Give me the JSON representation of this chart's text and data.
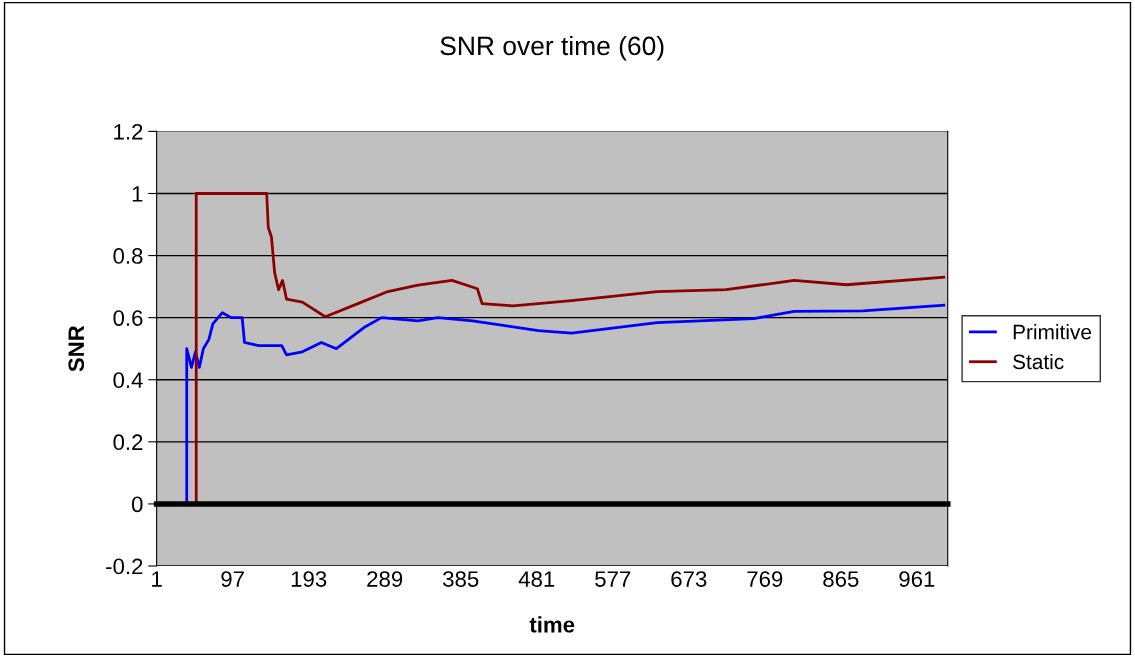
{
  "chart_data": {
    "type": "line",
    "title": "SNR over time (60)",
    "xlabel": "time",
    "ylabel": "SNR",
    "xlim": [
      1,
      1000
    ],
    "xticks": [
      1,
      97,
      193,
      289,
      385,
      481,
      577,
      673,
      769,
      865,
      961
    ],
    "ylim": [
      -0.2,
      1.2
    ],
    "yticks": [
      -0.2,
      0,
      0.2,
      0.4,
      0.6,
      0.8,
      1,
      1.2
    ],
    "grid": "y",
    "legend": "right",
    "line_style": "solid",
    "series": [
      {
        "name": "Primitive",
        "color": "#0000ff",
        "x": [
          1,
          39,
          39,
          45,
          50,
          55,
          60,
          67,
          72,
          84,
          95,
          109,
          112,
          130,
          159,
          165,
          185,
          209,
          228,
          264,
          285,
          331,
          356,
          400,
          483,
          525,
          633,
          755,
          806,
          893,
          995
        ],
        "values": [
          0,
          0,
          0.5,
          0.44,
          0.49,
          0.44,
          0.5,
          0.53,
          0.58,
          0.616,
          0.6,
          0.6,
          0.52,
          0.51,
          0.51,
          0.48,
          0.49,
          0.52,
          0.5,
          0.57,
          0.6,
          0.59,
          0.6,
          0.59,
          0.558,
          0.55,
          0.584,
          0.597,
          0.62,
          0.622,
          0.64
        ]
      },
      {
        "name": "Static",
        "color": "#8b0000",
        "x": [
          1,
          51,
          51,
          140,
          142,
          146,
          150,
          155,
          160,
          165,
          185,
          214,
          252,
          293,
          331,
          374,
          406,
          412,
          451,
          525,
          633,
          720,
          806,
          872,
          995
        ],
        "values": [
          0,
          0,
          1,
          1,
          0.89,
          0.86,
          0.745,
          0.69,
          0.72,
          0.66,
          0.65,
          0.603,
          0.642,
          0.684,
          0.705,
          0.72,
          0.693,
          0.645,
          0.638,
          0.655,
          0.684,
          0.69,
          0.72,
          0.706,
          0.73
        ]
      }
    ]
  }
}
